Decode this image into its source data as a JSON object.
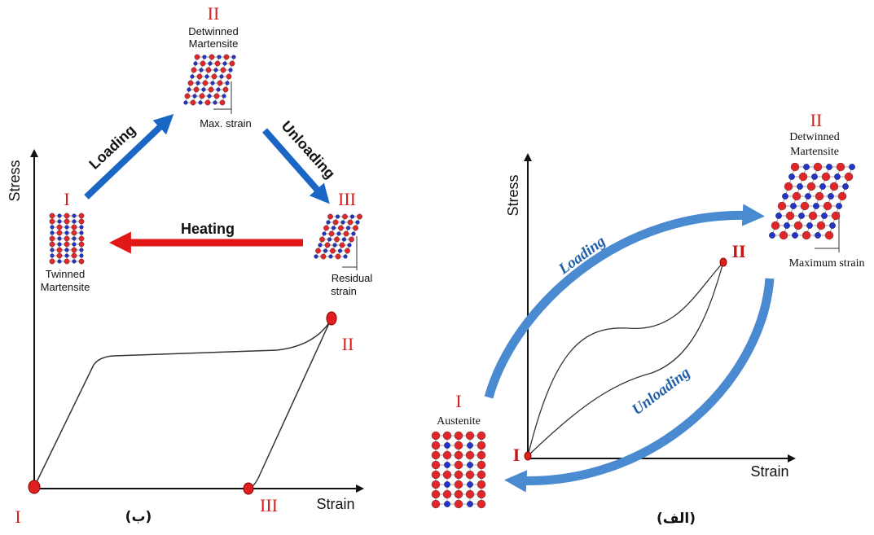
{
  "panels": [
    {
      "caption": "(ب)",
      "y_axis": "Stress",
      "x_axis": "Strain",
      "states": [
        {
          "numeral": "II",
          "name": [
            "Detwinned",
            "Martensite"
          ],
          "note": [
            "Max. strain"
          ]
        },
        {
          "numeral": "I",
          "name": [
            "Twinned",
            "Martensite"
          ]
        },
        {
          "numeral": "III",
          "note": [
            "Residual",
            "strain"
          ]
        }
      ],
      "processes": [
        "Loading",
        "Unloading",
        "Heating"
      ],
      "curve_labels": [
        "I",
        "II",
        "III"
      ]
    },
    {
      "caption": "(الف)",
      "y_axis": "Stress",
      "x_axis": "Strain",
      "states": [
        {
          "numeral": "II",
          "name": [
            "Detwinned",
            "Martensite"
          ],
          "note": [
            "Maximum strain"
          ]
        },
        {
          "numeral": "I",
          "name": [
            "Austenite"
          ]
        }
      ],
      "processes": [
        "Loading",
        "Unloading"
      ],
      "curve_labels": [
        "II",
        "I"
      ]
    }
  ]
}
